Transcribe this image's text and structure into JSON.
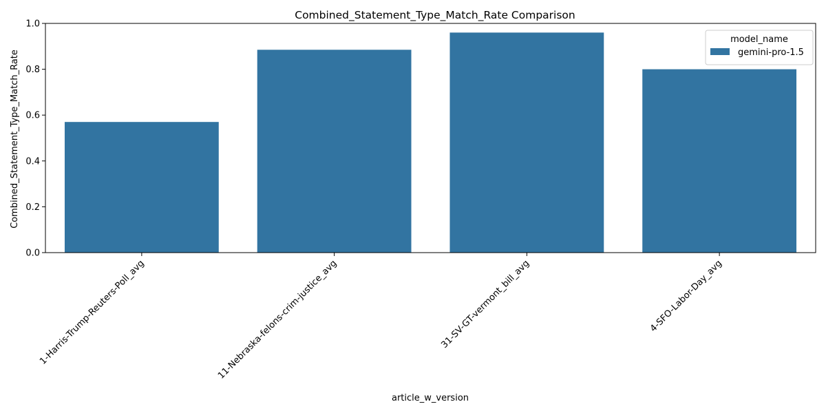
{
  "chart_data": {
    "type": "bar",
    "title": "Combined_Statement_Type_Match_Rate Comparison",
    "xlabel": "article_w_version",
    "ylabel": "Combined_Statement_Type_Match_Rate",
    "categories": [
      "1-Harris-Trump-Reuters-Poll_avg",
      "11-Nebraska-felons-crim-justice_avg",
      "31-SV-GT-vermont_bill_avg",
      "4-SFO-Labor-Day_avg"
    ],
    "series": [
      {
        "name": "gemini-pro-1.5",
        "values": [
          0.57,
          0.885,
          0.96,
          0.8
        ],
        "color": "#3274a1"
      }
    ],
    "ylim": [
      0,
      1.0
    ],
    "yticks": [
      "0.0",
      "0.2",
      "0.4",
      "0.6",
      "0.8",
      "1.0"
    ],
    "ytick_values": [
      0.0,
      0.2,
      0.4,
      0.6,
      0.8,
      1.0
    ],
    "grid": false,
    "legend": {
      "title": "model_name",
      "placement": "top-right"
    }
  }
}
